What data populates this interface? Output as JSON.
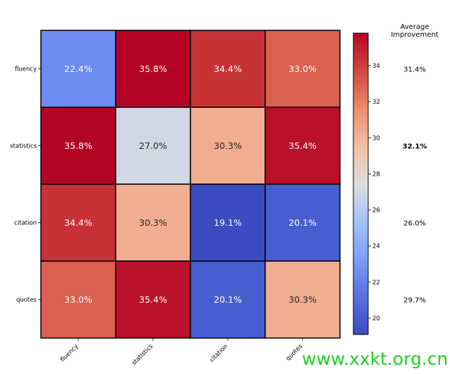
{
  "chart_data": {
    "type": "heatmap",
    "rows": [
      "fluency",
      "statistics",
      "citation",
      "quotes"
    ],
    "columns": [
      "fluency",
      "statistics",
      "citation",
      "quotes"
    ],
    "values": [
      [
        22.4,
        35.8,
        34.4,
        33.0
      ],
      [
        35.8,
        27.0,
        30.3,
        35.4
      ],
      [
        34.4,
        30.3,
        19.1,
        20.1
      ],
      [
        33.0,
        35.4,
        20.1,
        30.3
      ]
    ],
    "cell_labels": [
      [
        "22.4%",
        "35.8%",
        "34.4%",
        "33.0%"
      ],
      [
        "35.8%",
        "27.0%",
        "30.3%",
        "35.4%"
      ],
      [
        "34.4%",
        "30.3%",
        "19.1%",
        "20.1%"
      ],
      [
        "33.0%",
        "35.4%",
        "20.1%",
        "30.3%"
      ]
    ],
    "colormap": "coolwarm",
    "colorbar": {
      "range": [
        19.1,
        35.8
      ],
      "ticks": [
        20,
        22,
        24,
        26,
        28,
        30,
        32,
        34
      ]
    },
    "side_column": {
      "title_line1": "Average",
      "title_line2": "Improvement",
      "labels": [
        "31.4%",
        "32.1%",
        "26.0%",
        "29.7%"
      ],
      "bold_index": 1
    }
  },
  "watermark": "www.xxkt.org.cn"
}
